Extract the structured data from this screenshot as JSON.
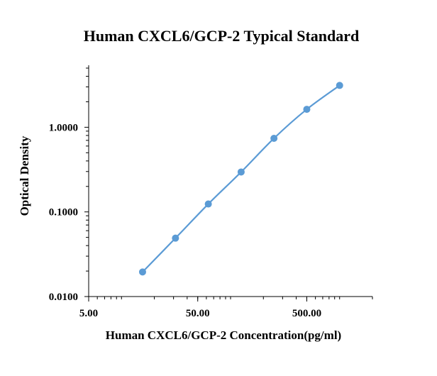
{
  "chart_data": {
    "type": "scatter",
    "title": "Human CXCL6/GCP-2  Typical Standard",
    "xlabel": "Human CXCL6/GCP-2  Concentration(pg/ml)",
    "ylabel": "Optical Density",
    "x_scale": "log",
    "y_scale": "log",
    "xlim": [
      5,
      2000
    ],
    "ylim": [
      0.01,
      5.4
    ],
    "x_ticks": [
      5,
      50,
      500
    ],
    "x_tick_labels": [
      "5.00",
      "50.00",
      "500.00"
    ],
    "y_ticks": [
      0.01,
      0.1,
      1
    ],
    "y_tick_labels": [
      "0.0100",
      "0.1000",
      "1.0000"
    ],
    "grid": false,
    "legend": "none",
    "series": [
      {
        "x": [
          15.6,
          31.25,
          62.5,
          125,
          250,
          500,
          1000
        ],
        "y": [
          0.0195,
          0.049,
          0.124,
          0.296,
          0.74,
          1.63,
          3.12
        ],
        "color": "#5b9bd5",
        "marker": "circle",
        "line": "smooth"
      }
    ]
  }
}
